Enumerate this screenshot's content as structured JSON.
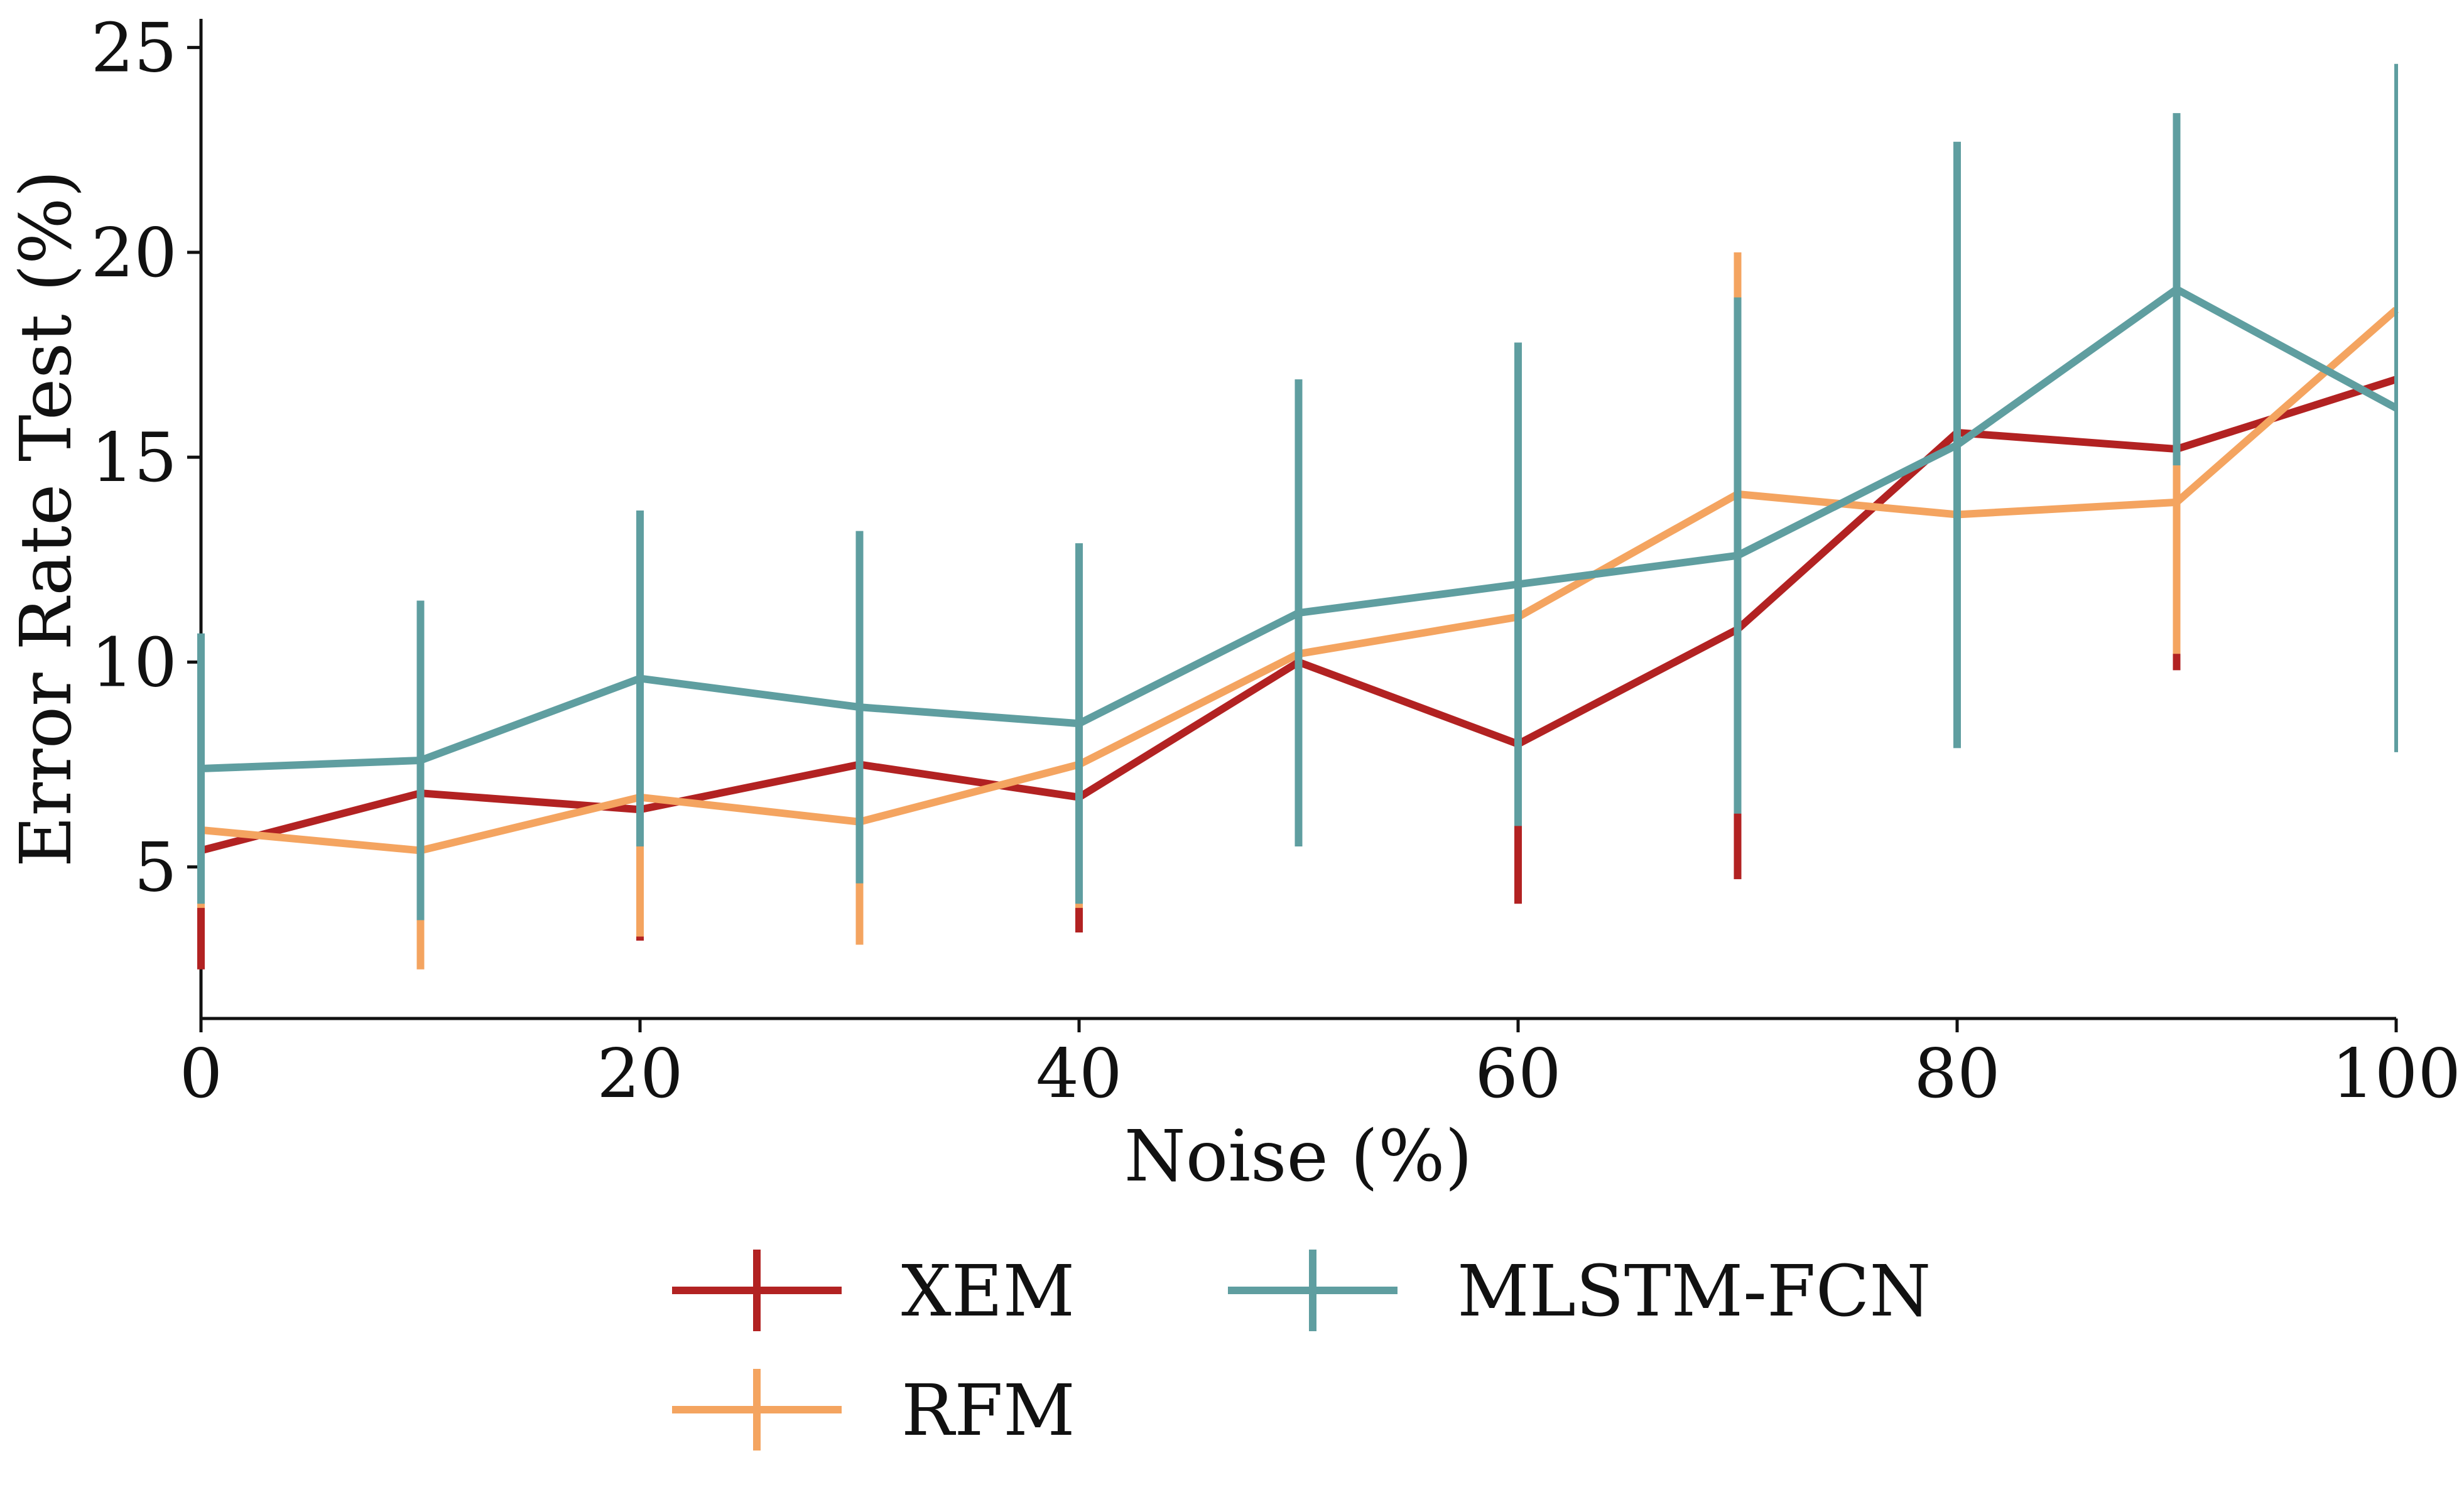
{
  "chart_data": {
    "type": "line",
    "title": "",
    "xlabel": "Noise (%)",
    "ylabel": "Error Rate Test (%)",
    "xlim": [
      0,
      100
    ],
    "ylim": [
      1.3,
      25.7
    ],
    "xticks": [
      0,
      20,
      40,
      60,
      80,
      100
    ],
    "yticks": [
      5,
      10,
      15,
      20,
      25
    ],
    "grid": false,
    "legend_position": "bottom-center",
    "x": [
      0,
      10,
      20,
      30,
      40,
      50,
      60,
      70,
      80,
      90,
      100
    ],
    "series": [
      {
        "name": "XEM",
        "color": "#b22222",
        "values": [
          5.4,
          6.8,
          6.4,
          7.5,
          6.7,
          10.0,
          8.0,
          10.8,
          15.6,
          15.2,
          16.9
        ],
        "error": [
          2.9,
          3.2,
          3.2,
          3.2,
          3.3,
          3.3,
          3.9,
          6.1,
          5.2,
          5.4,
          7.4
        ]
      },
      {
        "name": "RFM",
        "color": "#f4a460",
        "values": [
          5.9,
          5.4,
          6.7,
          6.1,
          7.5,
          10.2,
          11.1,
          14.1,
          13.6,
          13.9,
          18.6
        ],
        "error": [
          1.9,
          2.9,
          3.4,
          3.0,
          3.5,
          3.5,
          5.0,
          5.9,
          5.3,
          3.7,
          5.0
        ]
      },
      {
        "name": "MLSTM-FCN",
        "color": "#5f9ea0",
        "values": [
          7.4,
          7.6,
          9.6,
          8.9,
          8.5,
          11.2,
          11.9,
          12.6,
          15.3,
          19.1,
          16.2
        ],
        "error": [
          3.3,
          3.9,
          4.1,
          4.3,
          4.4,
          5.7,
          5.9,
          6.3,
          7.4,
          4.3,
          8.4
        ]
      }
    ]
  }
}
